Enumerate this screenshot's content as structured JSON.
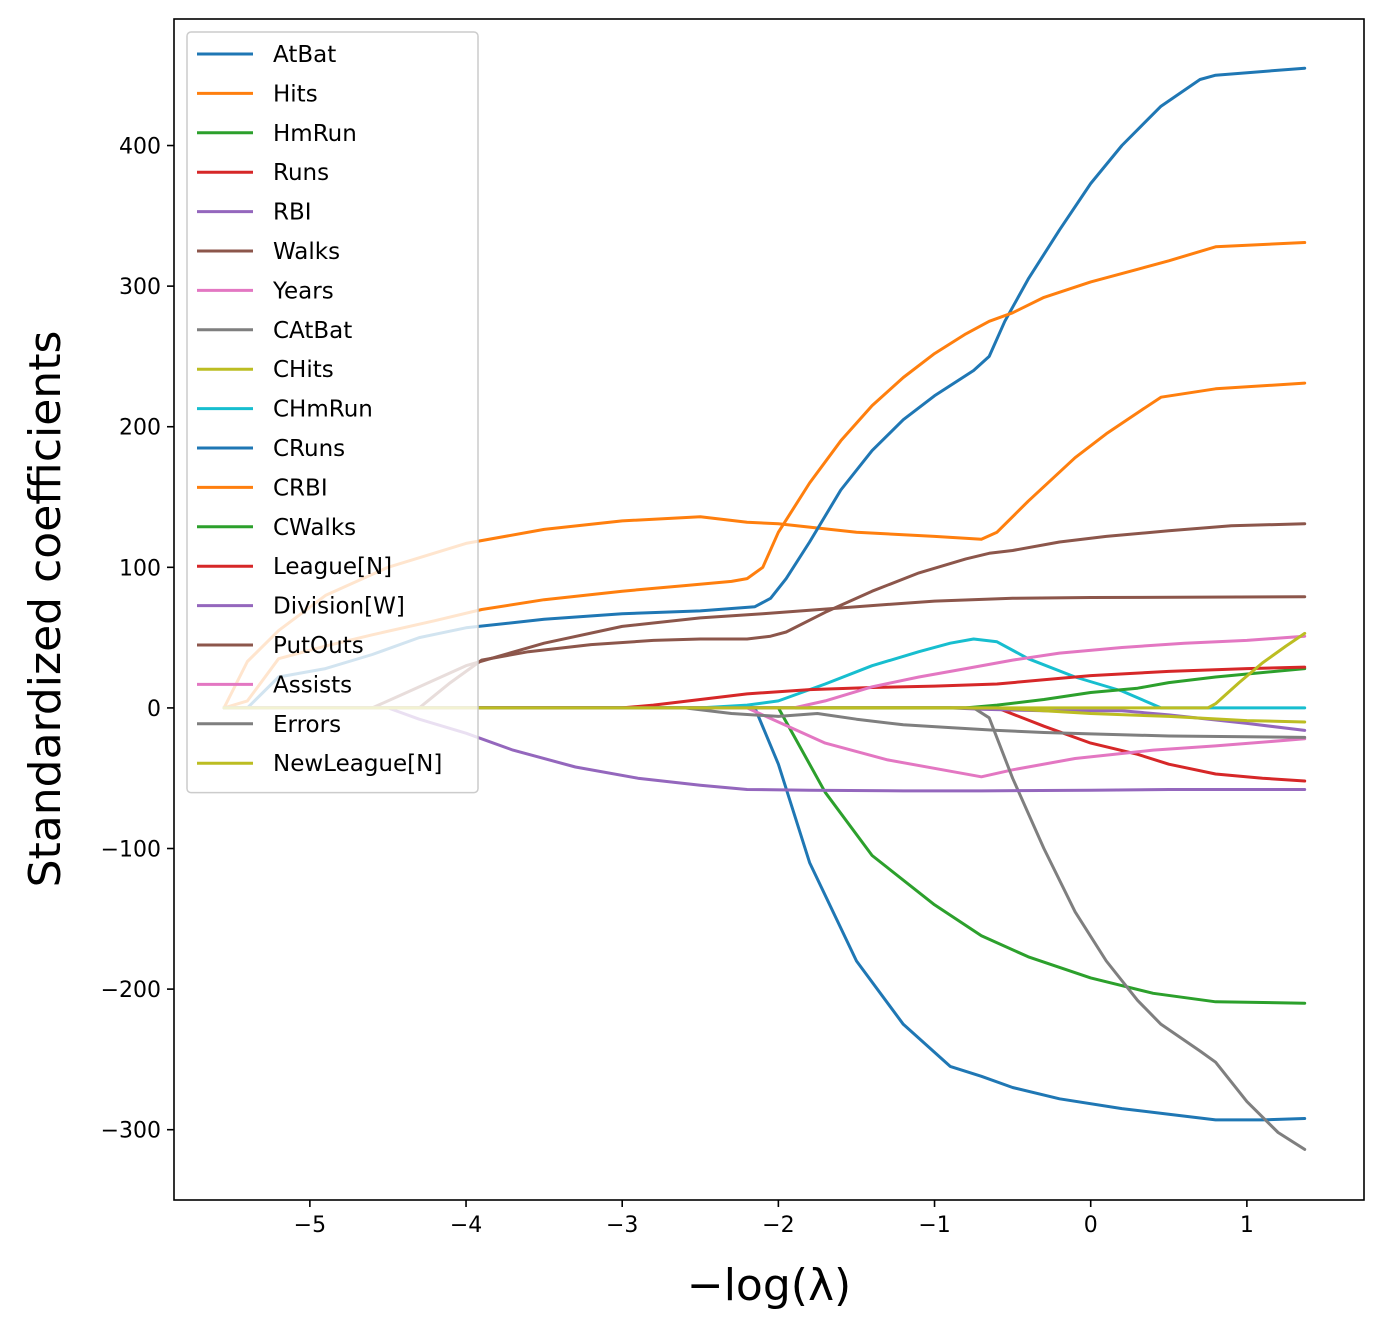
{
  "chart_data": {
    "type": "line",
    "xlabel": "−log(λ)",
    "ylabel": "Standardized coefficients",
    "xlim": [
      -5.87,
      1.75
    ],
    "ylim": [
      -350,
      490
    ],
    "xticks": [
      -5,
      -4,
      -3,
      -2,
      -1,
      0,
      1
    ],
    "xtick_labels": [
      "−5",
      "−4",
      "−3",
      "−2",
      "−1",
      "0",
      "1"
    ],
    "yticks": [
      -300,
      -200,
      -100,
      0,
      100,
      200,
      300,
      400
    ],
    "ytick_labels": [
      "−300",
      "−200",
      "−100",
      "0",
      "100",
      "200",
      "300",
      "400"
    ],
    "grid": false,
    "legend": "upper-left",
    "series": [
      {
        "name": "AtBat",
        "color": "#1f77b4",
        "points": [
          [
            -5.55,
            0
          ],
          [
            -2.15,
            0
          ],
          [
            -2.0,
            -40
          ],
          [
            -1.8,
            -110
          ],
          [
            -1.5,
            -180
          ],
          [
            -1.2,
            -225
          ],
          [
            -0.9,
            -255
          ],
          [
            -0.7,
            -262
          ],
          [
            -0.5,
            -270
          ],
          [
            -0.2,
            -278
          ],
          [
            0.2,
            -285
          ],
          [
            0.5,
            -289
          ],
          [
            0.8,
            -293
          ],
          [
            1.1,
            -293
          ],
          [
            1.37,
            -292
          ]
        ]
      },
      {
        "name": "Hits",
        "color": "#ff7f0e",
        "points": [
          [
            -5.55,
            0
          ],
          [
            -5.4,
            33
          ],
          [
            -5.2,
            55
          ],
          [
            -4.9,
            80
          ],
          [
            -4.5,
            100
          ],
          [
            -4.0,
            117
          ],
          [
            -3.5,
            127
          ],
          [
            -3.0,
            133
          ],
          [
            -2.5,
            136
          ],
          [
            -2.2,
            132
          ],
          [
            -2.0,
            131
          ],
          [
            -1.5,
            125
          ],
          [
            -1.0,
            122
          ],
          [
            -0.7,
            120
          ],
          [
            -0.6,
            125
          ],
          [
            -0.4,
            147
          ],
          [
            -0.1,
            178
          ],
          [
            0.1,
            195
          ],
          [
            0.3,
            210
          ],
          [
            0.45,
            221
          ],
          [
            0.8,
            227
          ],
          [
            1.37,
            231
          ]
        ]
      },
      {
        "name": "HmRun",
        "color": "#2ca02c",
        "points": [
          [
            -5.55,
            0
          ],
          [
            -2.0,
            0
          ],
          [
            -1.9,
            -20
          ],
          [
            -1.7,
            -60
          ],
          [
            -1.4,
            -105
          ],
          [
            -1.0,
            -140
          ],
          [
            -0.7,
            -162
          ],
          [
            -0.4,
            -177
          ],
          [
            0.0,
            -192
          ],
          [
            0.4,
            -203
          ],
          [
            0.8,
            -209
          ],
          [
            1.37,
            -210
          ]
        ]
      },
      {
        "name": "Runs",
        "color": "#d62728",
        "points": [
          [
            -5.55,
            0
          ],
          [
            -0.6,
            0
          ],
          [
            -0.3,
            -13
          ],
          [
            0.0,
            -25
          ],
          [
            0.3,
            -33
          ],
          [
            0.5,
            -40
          ],
          [
            0.8,
            -47
          ],
          [
            1.1,
            -50
          ],
          [
            1.37,
            -52
          ]
        ]
      },
      {
        "name": "RBI",
        "color": "#9467bd",
        "points": [
          [
            -5.55,
            0
          ],
          [
            -0.9,
            0
          ],
          [
            -0.7,
            -1
          ],
          [
            -0.3,
            -2
          ],
          [
            0.2,
            -2
          ],
          [
            0.5,
            -5
          ],
          [
            1.0,
            -11
          ],
          [
            1.37,
            -16
          ]
        ]
      },
      {
        "name": "Walks",
        "color": "#8c564b",
        "points": [
          [
            -5.55,
            0
          ],
          [
            -4.6,
            0
          ],
          [
            -4.4,
            10
          ],
          [
            -4.0,
            30
          ],
          [
            -3.5,
            46
          ],
          [
            -3.0,
            58
          ],
          [
            -2.5,
            64
          ],
          [
            -2.1,
            67
          ],
          [
            -1.5,
            72
          ],
          [
            -1.0,
            76
          ],
          [
            -0.5,
            78
          ],
          [
            0.0,
            78.5
          ],
          [
            1.37,
            79
          ]
        ]
      },
      {
        "name": "Years",
        "color": "#e377c2",
        "points": [
          [
            -5.55,
            0
          ],
          [
            -2.2,
            0
          ],
          [
            -2.0,
            -10
          ],
          [
            -1.7,
            -25
          ],
          [
            -1.3,
            -37
          ],
          [
            -0.9,
            -45
          ],
          [
            -0.7,
            -49
          ],
          [
            -0.5,
            -44
          ],
          [
            -0.1,
            -36
          ],
          [
            0.4,
            -30
          ],
          [
            0.8,
            -27
          ],
          [
            1.37,
            -22
          ]
        ]
      },
      {
        "name": "CAtBat",
        "color": "#7f7f7f",
        "points": [
          [
            -5.55,
            0
          ],
          [
            -0.75,
            0
          ],
          [
            -0.65,
            -7
          ],
          [
            -0.5,
            -50
          ],
          [
            -0.3,
            -100
          ],
          [
            -0.1,
            -145
          ],
          [
            0.1,
            -180
          ],
          [
            0.3,
            -208
          ],
          [
            0.45,
            -225
          ],
          [
            0.7,
            -244
          ],
          [
            0.8,
            -252
          ],
          [
            1.0,
            -280
          ],
          [
            1.2,
            -302
          ],
          [
            1.37,
            -314
          ]
        ]
      },
      {
        "name": "CHits",
        "color": "#bcbd22",
        "points": [
          [
            -5.55,
            0
          ],
          [
            -0.6,
            0
          ],
          [
            -0.3,
            -2
          ],
          [
            0.0,
            -4
          ],
          [
            0.5,
            -6
          ],
          [
            1.0,
            -9
          ],
          [
            1.37,
            -10
          ]
        ]
      },
      {
        "name": "CHmRun",
        "color": "#17becf",
        "points": [
          [
            -5.55,
            0
          ],
          [
            -2.5,
            0
          ],
          [
            -2.2,
            2
          ],
          [
            -2.0,
            5
          ],
          [
            -1.7,
            17
          ],
          [
            -1.4,
            30
          ],
          [
            -1.1,
            40
          ],
          [
            -0.9,
            46
          ],
          [
            -0.75,
            49
          ],
          [
            -0.6,
            47
          ],
          [
            -0.4,
            35
          ],
          [
            -0.1,
            22
          ],
          [
            0.2,
            12
          ],
          [
            0.45,
            0
          ],
          [
            1.37,
            0
          ]
        ]
      },
      {
        "name": "CRuns",
        "color": "#1f77b4",
        "points": [
          [
            -5.55,
            0
          ],
          [
            -5.4,
            0
          ],
          [
            -5.2,
            22
          ],
          [
            -4.9,
            28
          ],
          [
            -4.6,
            38
          ],
          [
            -4.3,
            50
          ],
          [
            -4.0,
            57
          ],
          [
            -3.5,
            63
          ],
          [
            -3.0,
            67
          ],
          [
            -2.5,
            69
          ],
          [
            -2.15,
            72
          ],
          [
            -2.05,
            78
          ],
          [
            -1.95,
            92
          ],
          [
            -1.8,
            118
          ],
          [
            -1.6,
            155
          ],
          [
            -1.4,
            183
          ],
          [
            -1.2,
            205
          ],
          [
            -1.0,
            222
          ],
          [
            -0.75,
            240
          ],
          [
            -0.65,
            250
          ],
          [
            -0.55,
            275
          ],
          [
            -0.4,
            305
          ],
          [
            -0.2,
            340
          ],
          [
            0.0,
            373
          ],
          [
            0.2,
            400
          ],
          [
            0.45,
            428
          ],
          [
            0.7,
            447
          ],
          [
            0.8,
            450
          ],
          [
            1.37,
            455
          ]
        ]
      },
      {
        "name": "CRBI",
        "color": "#ff7f0e",
        "points": [
          [
            -5.55,
            0
          ],
          [
            -5.4,
            5
          ],
          [
            -5.2,
            35
          ],
          [
            -4.9,
            44
          ],
          [
            -4.6,
            52
          ],
          [
            -4.2,
            62
          ],
          [
            -3.9,
            70
          ],
          [
            -3.5,
            77
          ],
          [
            -3.0,
            83
          ],
          [
            -2.6,
            87
          ],
          [
            -2.3,
            90
          ],
          [
            -2.2,
            92
          ],
          [
            -2.1,
            100
          ],
          [
            -2.0,
            125
          ],
          [
            -1.8,
            160
          ],
          [
            -1.6,
            190
          ],
          [
            -1.4,
            215
          ],
          [
            -1.2,
            235
          ],
          [
            -1.0,
            252
          ],
          [
            -0.8,
            266
          ],
          [
            -0.65,
            275
          ],
          [
            -0.5,
            281
          ],
          [
            -0.3,
            292
          ],
          [
            0.0,
            303
          ],
          [
            0.3,
            312
          ],
          [
            0.5,
            318
          ],
          [
            0.8,
            328
          ],
          [
            1.37,
            331
          ]
        ]
      },
      {
        "name": "CWalks",
        "color": "#2ca02c",
        "points": [
          [
            -5.55,
            0
          ],
          [
            -0.8,
            0
          ],
          [
            -0.6,
            2
          ],
          [
            -0.3,
            6
          ],
          [
            0.0,
            11
          ],
          [
            0.3,
            14
          ],
          [
            0.5,
            18
          ],
          [
            0.8,
            22
          ],
          [
            1.37,
            28
          ]
        ]
      },
      {
        "name": "League[N]",
        "color": "#d62728",
        "points": [
          [
            -5.55,
            0
          ],
          [
            -3.0,
            0
          ],
          [
            -2.8,
            2
          ],
          [
            -2.5,
            6
          ],
          [
            -2.2,
            10
          ],
          [
            -1.8,
            13
          ],
          [
            -1.4,
            14.5
          ],
          [
            -1.0,
            15.5
          ],
          [
            -0.6,
            17
          ],
          [
            -0.3,
            20
          ],
          [
            0.0,
            23
          ],
          [
            0.5,
            26
          ],
          [
            1.0,
            28
          ],
          [
            1.37,
            29
          ]
        ]
      },
      {
        "name": "Division[W]",
        "color": "#9467bd",
        "points": [
          [
            -5.55,
            0
          ],
          [
            -4.5,
            0
          ],
          [
            -4.3,
            -8
          ],
          [
            -4.0,
            -18
          ],
          [
            -3.7,
            -30
          ],
          [
            -3.3,
            -42
          ],
          [
            -2.9,
            -50
          ],
          [
            -2.5,
            -55
          ],
          [
            -2.2,
            -58
          ],
          [
            -1.8,
            -58.5
          ],
          [
            -1.2,
            -59
          ],
          [
            -0.7,
            -59
          ],
          [
            0.0,
            -58.5
          ],
          [
            0.5,
            -58
          ],
          [
            1.37,
            -58
          ]
        ]
      },
      {
        "name": "PutOuts",
        "color": "#8c564b",
        "points": [
          [
            -5.55,
            0
          ],
          [
            -4.3,
            0
          ],
          [
            -4.1,
            18
          ],
          [
            -3.9,
            34
          ],
          [
            -3.6,
            40
          ],
          [
            -3.2,
            45
          ],
          [
            -2.8,
            48
          ],
          [
            -2.5,
            49
          ],
          [
            -2.2,
            49
          ],
          [
            -2.05,
            51
          ],
          [
            -1.95,
            54
          ],
          [
            -1.7,
            68
          ],
          [
            -1.4,
            83
          ],
          [
            -1.1,
            96
          ],
          [
            -0.8,
            106
          ],
          [
            -0.65,
            110
          ],
          [
            -0.5,
            112
          ],
          [
            -0.2,
            118
          ],
          [
            0.1,
            122
          ],
          [
            0.5,
            126
          ],
          [
            0.9,
            129.5
          ],
          [
            1.37,
            131
          ]
        ]
      },
      {
        "name": "Assists",
        "color": "#e377c2",
        "points": [
          [
            -5.55,
            0
          ],
          [
            -1.9,
            0
          ],
          [
            -1.7,
            5
          ],
          [
            -1.4,
            15
          ],
          [
            -1.1,
            22
          ],
          [
            -0.8,
            28
          ],
          [
            -0.5,
            34
          ],
          [
            -0.2,
            39
          ],
          [
            0.2,
            43
          ],
          [
            0.6,
            46
          ],
          [
            1.0,
            48
          ],
          [
            1.37,
            51
          ]
        ]
      },
      {
        "name": "Errors",
        "color": "#7f7f7f",
        "points": [
          [
            -5.55,
            0
          ],
          [
            -2.6,
            0
          ],
          [
            -2.3,
            -4
          ],
          [
            -2.0,
            -6
          ],
          [
            -1.75,
            -4
          ],
          [
            -1.5,
            -8
          ],
          [
            -1.2,
            -12
          ],
          [
            -0.9,
            -14
          ],
          [
            -0.6,
            -16
          ],
          [
            -0.3,
            -17.5
          ],
          [
            0.0,
            -18.5
          ],
          [
            0.5,
            -20
          ],
          [
            1.0,
            -20.5
          ],
          [
            1.37,
            -21
          ]
        ]
      },
      {
        "name": "NewLeague[N]",
        "color": "#bcbd22",
        "points": [
          [
            -5.55,
            0
          ],
          [
            0.75,
            0
          ],
          [
            0.8,
            3
          ],
          [
            0.95,
            18
          ],
          [
            1.1,
            32
          ],
          [
            1.25,
            44
          ],
          [
            1.37,
            53
          ]
        ]
      }
    ]
  }
}
